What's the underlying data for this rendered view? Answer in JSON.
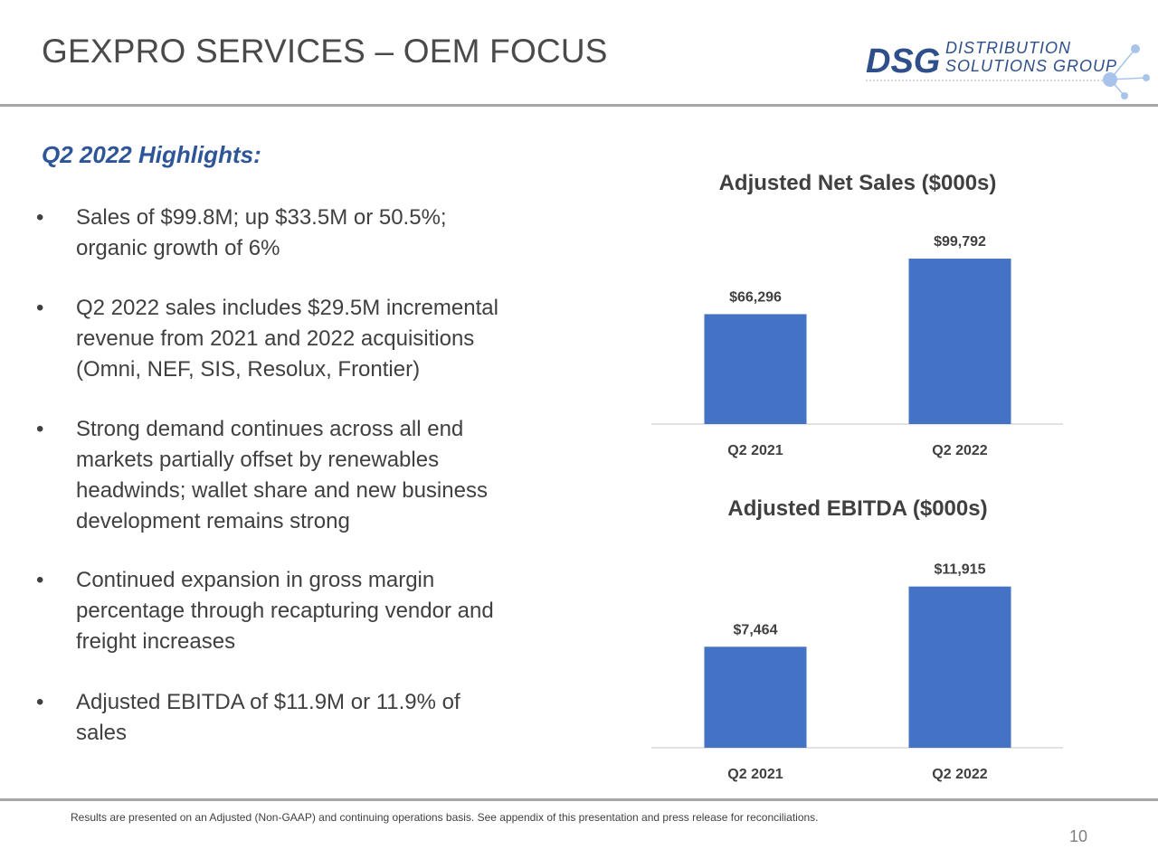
{
  "header": {
    "title": "GEXPRO SERVICES – OEM FOCUS",
    "logo_mark": "DSG",
    "logo_line1": "DISTRIBUTION",
    "logo_line2": "SOLUTIONS GROUP"
  },
  "highlights": {
    "heading": "Q2 2022 Highlights:",
    "bullet_glyph": "•",
    "bullets": [
      [
        "Sales of $99.8M; up $33.5M or 50.5%;",
        "organic growth of 6%"
      ],
      [
        "Q2 2022 sales includes $29.5M incremental",
        "revenue from 2021 and 2022 acquisitions",
        "(Omni, NEF, SIS, Resolux, Frontier)"
      ],
      [
        "Strong demand continues across all end",
        "markets partially offset by renewables",
        "headwinds; wallet share and new business",
        "development remains strong"
      ],
      [
        "Continued expansion in gross margin",
        "percentage through recapturing vendor and",
        "freight increases"
      ],
      [
        "Adjusted EBITDA of $11.9M or 11.9% of",
        "sales"
      ]
    ]
  },
  "chart_data": [
    {
      "type": "bar",
      "title": "Adjusted Net Sales ($000s)",
      "categories": [
        "Q2 2021",
        "Q2 2022"
      ],
      "values": [
        66296,
        99792
      ],
      "data_labels": [
        "$66,296",
        "$99,792"
      ],
      "ylim": [
        0,
        120000
      ],
      "grid": false,
      "color": "#4472c4"
    },
    {
      "type": "bar",
      "title": "Adjusted EBITDA ($000s)",
      "categories": [
        "Q2 2021",
        "Q2 2022"
      ],
      "values": [
        7464,
        11915
      ],
      "data_labels": [
        "$7,464",
        "$11,915"
      ],
      "ylim": [
        0,
        14500
      ],
      "grid": false,
      "color": "#4472c4"
    }
  ],
  "footer": {
    "note": "Results are presented on an Adjusted (Non-GAAP) and continuing operations basis. See appendix of this presentation and press release for reconciliations.",
    "page_number": "10"
  },
  "colors": {
    "accent_blue": "#2e5597",
    "bar_blue": "#4472c4",
    "logo_node": "#a9c4ea"
  }
}
